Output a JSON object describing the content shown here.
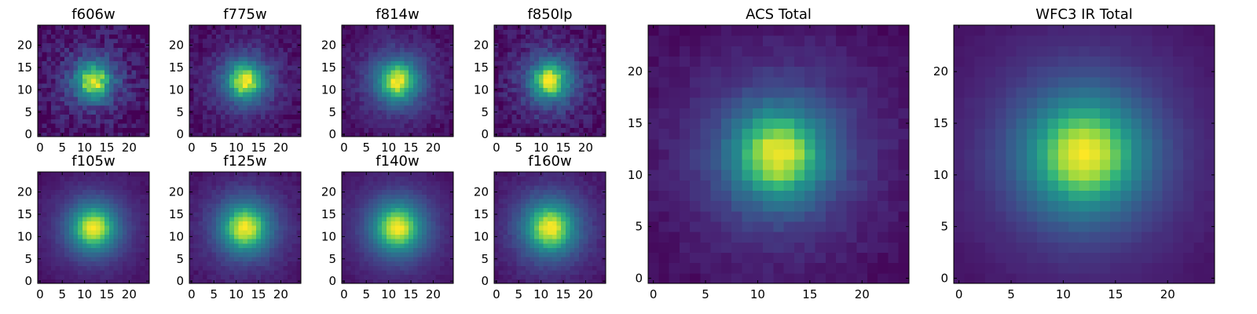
{
  "figure": {
    "type": "image-grid",
    "colormap": "viridis"
  },
  "chart_data": [
    {
      "type": "heatmap",
      "title": "f606w",
      "xlim": [
        -0.5,
        24.5
      ],
      "ylim": [
        -0.5,
        24.5
      ],
      "xticks": [
        0,
        5,
        10,
        15,
        20
      ],
      "yticks": [
        0,
        5,
        10,
        15,
        20
      ],
      "peak": [
        12,
        12
      ],
      "sigma": 2.8,
      "noise": 0.1
    },
    {
      "type": "heatmap",
      "title": "f775w",
      "xlim": [
        -0.5,
        24.5
      ],
      "ylim": [
        -0.5,
        24.5
      ],
      "xticks": [
        0,
        5,
        10,
        15,
        20
      ],
      "yticks": [
        0,
        5,
        10,
        15,
        20
      ],
      "peak": [
        12,
        12
      ],
      "sigma": 3.0,
      "noise": 0.06
    },
    {
      "type": "heatmap",
      "title": "f814w",
      "xlim": [
        -0.5,
        24.5
      ],
      "ylim": [
        -0.5,
        24.5
      ],
      "xticks": [
        0,
        5,
        10,
        15,
        20
      ],
      "yticks": [
        0,
        5,
        10,
        15,
        20
      ],
      "peak": [
        12,
        12
      ],
      "sigma": 3.2,
      "noise": 0.05
    },
    {
      "type": "heatmap",
      "title": "f850lp",
      "xlim": [
        -0.5,
        24.5
      ],
      "ylim": [
        -0.5,
        24.5
      ],
      "xticks": [
        0,
        5,
        10,
        15,
        20
      ],
      "yticks": [
        0,
        5,
        10,
        15,
        20
      ],
      "peak": [
        12,
        12
      ],
      "sigma": 3.0,
      "noise": 0.08
    },
    {
      "type": "heatmap",
      "title": "f105w",
      "xlim": [
        -0.5,
        24.5
      ],
      "ylim": [
        -0.5,
        24.5
      ],
      "xticks": [
        0,
        5,
        10,
        15,
        20
      ],
      "yticks": [
        0,
        5,
        10,
        15,
        20
      ],
      "peak": [
        12,
        12
      ],
      "sigma": 3.6,
      "noise": 0.02
    },
    {
      "type": "heatmap",
      "title": "f125w",
      "xlim": [
        -0.5,
        24.5
      ],
      "ylim": [
        -0.5,
        24.5
      ],
      "xticks": [
        0,
        5,
        10,
        15,
        20
      ],
      "yticks": [
        0,
        5,
        10,
        15,
        20
      ],
      "peak": [
        12,
        12
      ],
      "sigma": 3.8,
      "noise": 0.03
    },
    {
      "type": "heatmap",
      "title": "f140w",
      "xlim": [
        -0.5,
        24.5
      ],
      "ylim": [
        -0.5,
        24.5
      ],
      "xticks": [
        0,
        5,
        10,
        15,
        20
      ],
      "yticks": [
        0,
        5,
        10,
        15,
        20
      ],
      "peak": [
        12,
        12
      ],
      "sigma": 3.9,
      "noise": 0.02
    },
    {
      "type": "heatmap",
      "title": "f160w",
      "xlim": [
        -0.5,
        24.5
      ],
      "ylim": [
        -0.5,
        24.5
      ],
      "xticks": [
        0,
        5,
        10,
        15,
        20
      ],
      "yticks": [
        0,
        5,
        10,
        15,
        20
      ],
      "peak": [
        12,
        12
      ],
      "sigma": 4.0,
      "noise": 0.03
    },
    {
      "type": "heatmap",
      "title": "ACS Total",
      "xlim": [
        -0.5,
        24.5
      ],
      "ylim": [
        -0.5,
        24.5
      ],
      "xticks": [
        0,
        5,
        10,
        15,
        20
      ],
      "yticks": [
        0,
        5,
        10,
        15,
        20
      ],
      "peak": [
        12,
        12
      ],
      "sigma": 3.2,
      "noise": 0.03
    },
    {
      "type": "heatmap",
      "title": "WFC3 IR Total",
      "xlim": [
        -0.5,
        24.5
      ],
      "ylim": [
        -0.5,
        24.5
      ],
      "xticks": [
        0,
        5,
        10,
        15,
        20
      ],
      "yticks": [
        0,
        5,
        10,
        15,
        20
      ],
      "peak": [
        12,
        12
      ],
      "sigma": 3.9,
      "noise": 0.01
    }
  ]
}
